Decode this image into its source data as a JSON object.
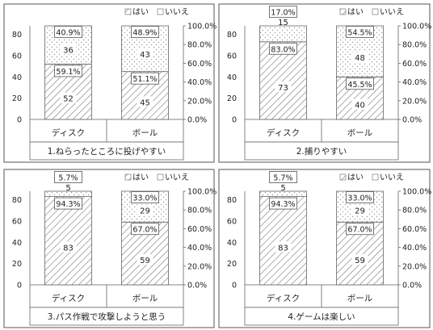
{
  "legend": {
    "yes_label": "はい",
    "no_label": "いいえ"
  },
  "colors": {
    "frame": "#555555",
    "axis": "#666666",
    "hatch": "#8a8a8a",
    "dots": "#9a9a9a",
    "text": "#222222"
  },
  "chart_data": [
    {
      "type": "bar",
      "caption": "1.ねらったところに投げやすい",
      "categories": [
        "ディスク",
        "ボール"
      ],
      "series": [
        {
          "name": "はい",
          "values": [
            52,
            45
          ],
          "percent_labels": [
            "59.1%",
            "51.1%"
          ]
        },
        {
          "name": "いいえ",
          "values": [
            36,
            43
          ],
          "percent_labels": [
            "40.9%",
            "48.9%"
          ]
        }
      ],
      "left_axis": {
        "ylim": [
          0,
          88
        ],
        "ticks": [
          "0",
          "20",
          "40",
          "60",
          "80"
        ]
      },
      "right_axis": {
        "ylim": [
          0,
          100
        ],
        "ticks": [
          "0.0%",
          "20.0%",
          "40.0%",
          "60.0%",
          "80.0%",
          "100.0%"
        ]
      },
      "legend_position": "top-right"
    },
    {
      "type": "bar",
      "caption": "2.捕りやすい",
      "categories": [
        "ディスク",
        "ボール"
      ],
      "series": [
        {
          "name": "はい",
          "values": [
            73,
            40
          ],
          "percent_labels": [
            "83.0%",
            "45.5%"
          ]
        },
        {
          "name": "いいえ",
          "values": [
            15,
            48
          ],
          "percent_labels": [
            "17.0%",
            "54.5%"
          ]
        }
      ],
      "left_axis": {
        "ylim": [
          0,
          88
        ],
        "ticks": [
          "0",
          "20",
          "40",
          "60",
          "80"
        ]
      },
      "right_axis": {
        "ylim": [
          0,
          100
        ],
        "ticks": [
          "0.0%",
          "20.0%",
          "40.0%",
          "60.0%",
          "80.0%",
          "100.0%"
        ]
      },
      "legend_position": "top-right"
    },
    {
      "type": "bar",
      "caption": "3.パス作戦で攻撃しようと思う",
      "categories": [
        "ディスク",
        "ボール"
      ],
      "series": [
        {
          "name": "はい",
          "values": [
            83,
            59
          ],
          "percent_labels": [
            "94.3%",
            "67.0%"
          ]
        },
        {
          "name": "いいえ",
          "values": [
            5,
            29
          ],
          "percent_labels": [
            "5.7%",
            "33.0%"
          ]
        }
      ],
      "left_axis": {
        "ylim": [
          0,
          88
        ],
        "ticks": [
          "0",
          "20",
          "40",
          "60",
          "80"
        ]
      },
      "right_axis": {
        "ylim": [
          0,
          100
        ],
        "ticks": [
          "0.0%",
          "20.0%",
          "40.0%",
          "60.0%",
          "80.0%",
          "100.0%"
        ]
      },
      "legend_position": "top-right"
    },
    {
      "type": "bar",
      "caption": "4.ゲームは楽しい",
      "categories": [
        "ディスク",
        "ボール"
      ],
      "series": [
        {
          "name": "はい",
          "values": [
            83,
            59
          ],
          "percent_labels": [
            "94.3%",
            "67.0%"
          ]
        },
        {
          "name": "いいえ",
          "values": [
            5,
            29
          ],
          "percent_labels": [
            "5.7%",
            "33.0%"
          ]
        }
      ],
      "left_axis": {
        "ylim": [
          0,
          88
        ],
        "ticks": [
          "0",
          "20",
          "40",
          "60",
          "80"
        ]
      },
      "right_axis": {
        "ylim": [
          0,
          100
        ],
        "ticks": [
          "0.0%",
          "20.0%",
          "40.0%",
          "60.0%",
          "80.0%",
          "100.0%"
        ]
      },
      "legend_position": "top-right"
    }
  ]
}
